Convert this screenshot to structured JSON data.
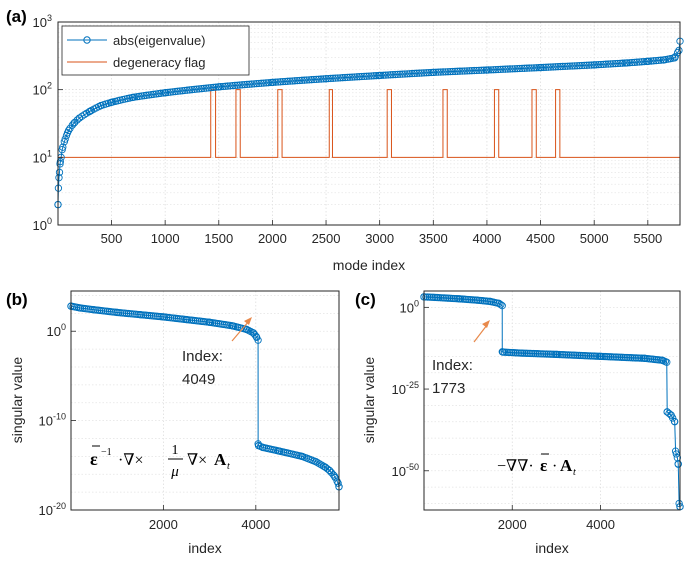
{
  "chart_data": [
    {
      "panel": "(a)",
      "type": "line",
      "xlabel": "mode index",
      "ylabel": "",
      "xlim": [
        1,
        5800
      ],
      "ylim": [
        1,
        1000
      ],
      "yscale": "log",
      "grid": true,
      "legend_position": "top-left",
      "x_ticks": [
        500,
        1000,
        1500,
        2000,
        2500,
        3000,
        3500,
        4000,
        4500,
        5000,
        5500
      ],
      "y_ticks": [
        {
          "value": 1,
          "base": "10",
          "exp": "0"
        },
        {
          "value": 10,
          "base": "10",
          "exp": "1"
        },
        {
          "value": 100,
          "base": "10",
          "exp": "2"
        },
        {
          "value": 1000,
          "base": "10",
          "exp": "3"
        }
      ],
      "series": [
        {
          "name": "abs(eigenvalue)",
          "color": "#0072BD",
          "marker": "circle",
          "x": [
            1,
            5,
            10,
            15,
            20,
            30,
            40,
            60,
            80,
            100,
            150,
            200,
            300,
            400,
            500,
            700,
            1000,
            1500,
            2000,
            2500,
            3000,
            3500,
            4000,
            4500,
            5000,
            5300,
            5500,
            5650,
            5750,
            5790,
            5800
          ],
          "y": [
            2,
            3.5,
            5,
            6,
            8,
            10,
            13,
            17,
            21,
            25,
            32,
            38,
            48,
            58,
            65,
            77,
            90,
            110,
            128,
            145,
            162,
            180,
            195,
            212,
            232,
            248,
            262,
            275,
            295,
            380,
            520
          ]
        },
        {
          "name": "degeneracy flag",
          "color": "#D95319",
          "base": 10,
          "pulse_value": 100,
          "pulses": [
            [
              1425,
              1470
            ],
            [
              1660,
              1700
            ],
            [
              2050,
              2090
            ],
            [
              2530,
              2560
            ],
            [
              3070,
              3110
            ],
            [
              3590,
              3630
            ],
            [
              4070,
              4110
            ],
            [
              4420,
              4460
            ],
            [
              4640,
              4680
            ]
          ]
        }
      ]
    },
    {
      "panel": "(b)",
      "type": "line",
      "xlabel": "index",
      "ylabel": "singular value",
      "xlim": [
        1,
        5800
      ],
      "ylim_exp": [
        -20,
        4.5
      ],
      "yscale": "log",
      "grid": true,
      "x_ticks": [
        2000,
        4000
      ],
      "y_ticks": [
        {
          "exp_value": 0,
          "base": "10",
          "exp": "0"
        },
        {
          "exp_value": -10,
          "base": "10",
          "exp": "-10"
        },
        {
          "exp_value": -20,
          "base": "10",
          "exp": "-20"
        }
      ],
      "series": [
        {
          "name": "",
          "color": "#0072BD",
          "marker": "circle",
          "x": [
            1,
            200,
            500,
            1000,
            1500,
            2000,
            2500,
            3000,
            3500,
            3800,
            3950,
            4010,
            4049,
            4050,
            4060,
            4150,
            4500,
            5000,
            5300,
            5500,
            5600,
            5700,
            5780,
            5800
          ],
          "y_exp": [
            2.8,
            2.6,
            2.4,
            2.1,
            1.85,
            1.6,
            1.3,
            1.0,
            0.6,
            0.2,
            -0.2,
            -0.6,
            -1.0,
            -12.6,
            -12.8,
            -13.0,
            -13.4,
            -14.0,
            -14.6,
            -15.2,
            -15.6,
            -16.2,
            -17.0,
            -17.4
          ]
        }
      ],
      "annotations": [
        {
          "line1": "Index:",
          "line2": "4049",
          "x": 4049,
          "y_exp": -1.0
        }
      ],
      "formula": {
        "eps": "ε",
        "inv": "−1",
        "dot_nabla": "·∇×",
        "num": "1",
        "den": "μ",
        "rest": "∇×",
        "A": "A",
        "sub": "t"
      }
    },
    {
      "panel": "(c)",
      "type": "line",
      "xlabel": "index",
      "ylabel": "singular value",
      "xlim": [
        1,
        5800
      ],
      "ylim_exp": [
        -62,
        5
      ],
      "yscale": "log",
      "grid": true,
      "x_ticks": [
        2000,
        4000
      ],
      "y_ticks": [
        {
          "exp_value": 0,
          "base": "10",
          "exp": "0"
        },
        {
          "exp_value": -25,
          "base": "10",
          "exp": "-25"
        },
        {
          "exp_value": -50,
          "base": "10",
          "exp": "-50"
        }
      ],
      "series": [
        {
          "name": "",
          "color": "#0072BD",
          "marker": "circle",
          "x": [
            1,
            300,
            800,
            1200,
            1500,
            1700,
            1773,
            1774,
            1790,
            2200,
            3000,
            4000,
            5000,
            5400,
            5500,
            5510,
            5600,
            5680,
            5700,
            5740,
            5760,
            5780,
            5800
          ],
          "y_exp": [
            3.2,
            3.0,
            2.6,
            2.2,
            1.8,
            1.2,
            0.5,
            -13.6,
            -13.7,
            -14.0,
            -14.4,
            -15.0,
            -15.6,
            -16.2,
            -16.8,
            -32.0,
            -33.0,
            -35.0,
            -44.0,
            -46.0,
            -48.0,
            -60.0,
            -61.0
          ]
        }
      ],
      "annotations": [
        {
          "line1": "Index:",
          "line2": "1773",
          "x": 1773,
          "y_exp": 0.5
        }
      ],
      "formula": {
        "prefix": "−∇∇·",
        "eps": "ε",
        "dot": "·",
        "A": "A",
        "sub": "t"
      }
    }
  ]
}
